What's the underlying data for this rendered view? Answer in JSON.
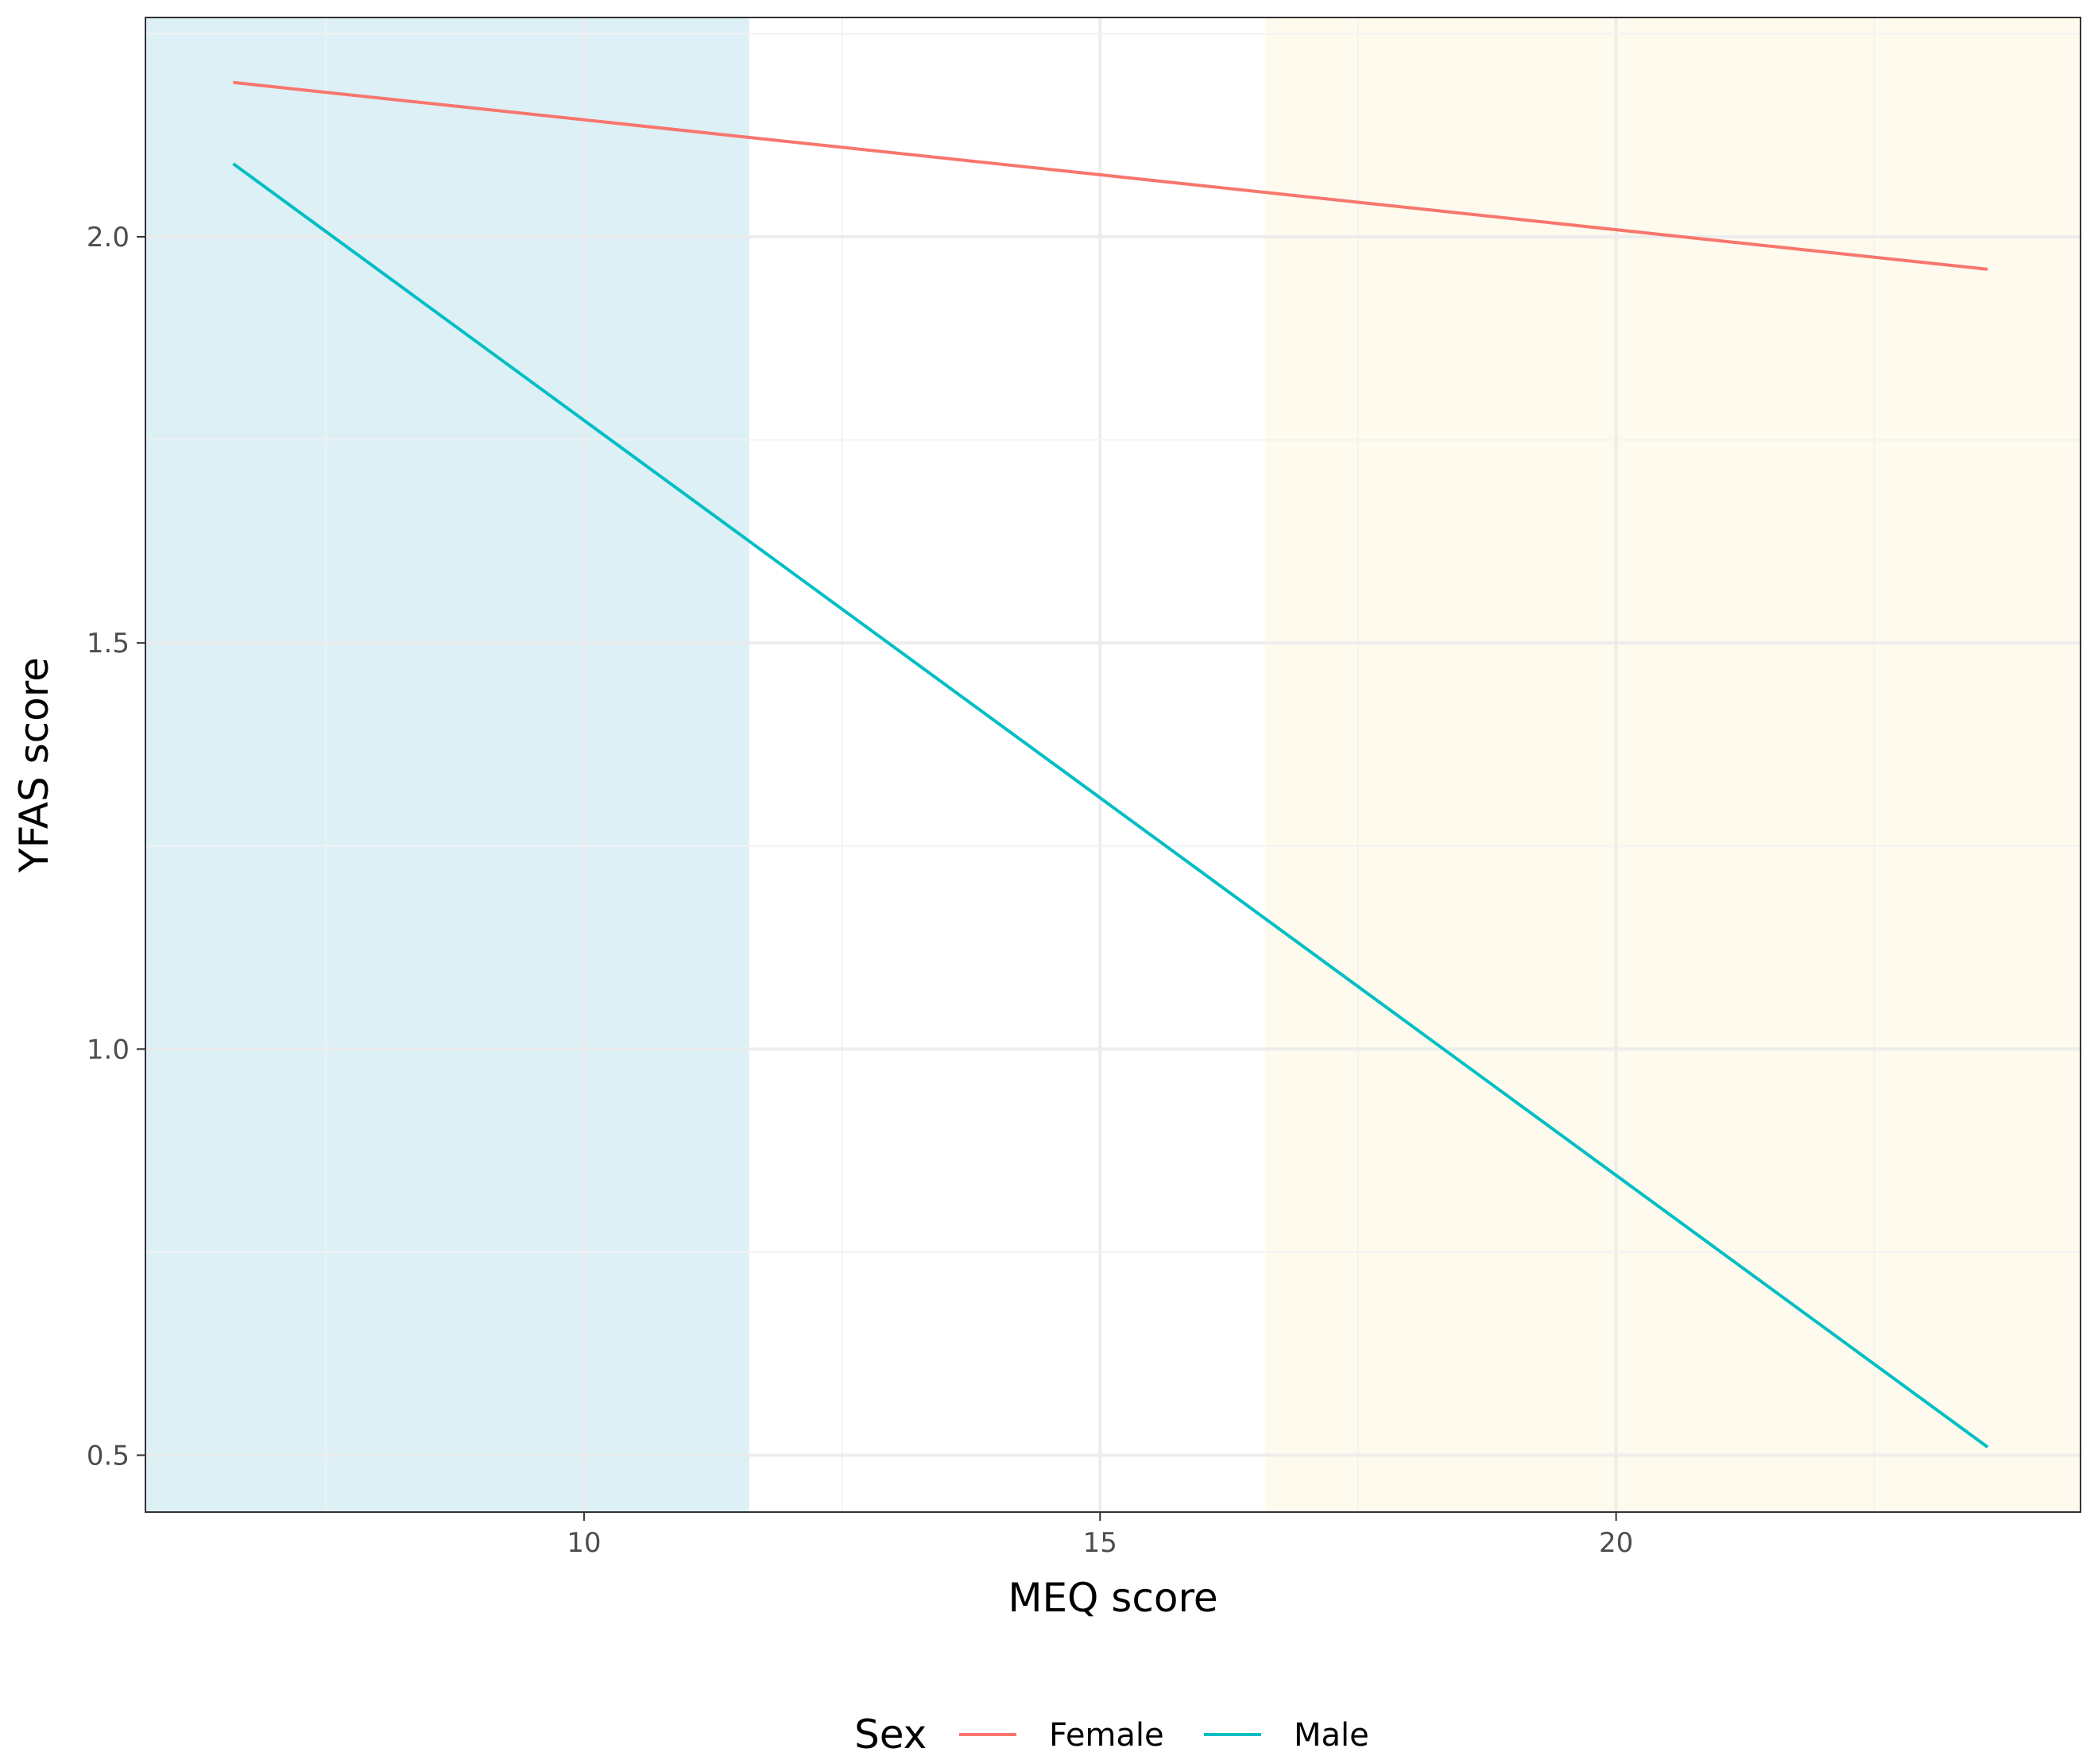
{
  "chart_data": {
    "type": "line",
    "xlabel": "MEQ score",
    "ylabel": "YFAS score",
    "xlim": [
      5.75,
      24.5
    ],
    "ylim": [
      0.43,
      2.27
    ],
    "x_ticks": [
      10,
      15,
      20
    ],
    "x_tick_labels": [
      "10",
      "15",
      "20"
    ],
    "y_ticks": [
      0.5,
      1.0,
      1.5,
      2.0
    ],
    "y_tick_labels": [
      "0.5",
      "1.0",
      "1.5",
      "2.0"
    ],
    "grid": true,
    "shaded_regions": [
      {
        "x_from": 5.75,
        "x_to": 11.6,
        "color": "#dcf0f6"
      },
      {
        "x_from": 16.6,
        "x_to": 24.5,
        "color": "#fefaed"
      }
    ],
    "series": [
      {
        "name": "Female",
        "color": "#f8766d",
        "x": [
          6.6,
          23.6
        ],
        "y": [
          2.19,
          1.96
        ]
      },
      {
        "name": "Male",
        "color": "#00bfc4",
        "x": [
          6.6,
          23.6
        ],
        "y": [
          2.09,
          0.51
        ]
      }
    ],
    "legend": {
      "title": "Sex",
      "position": "bottom"
    }
  }
}
